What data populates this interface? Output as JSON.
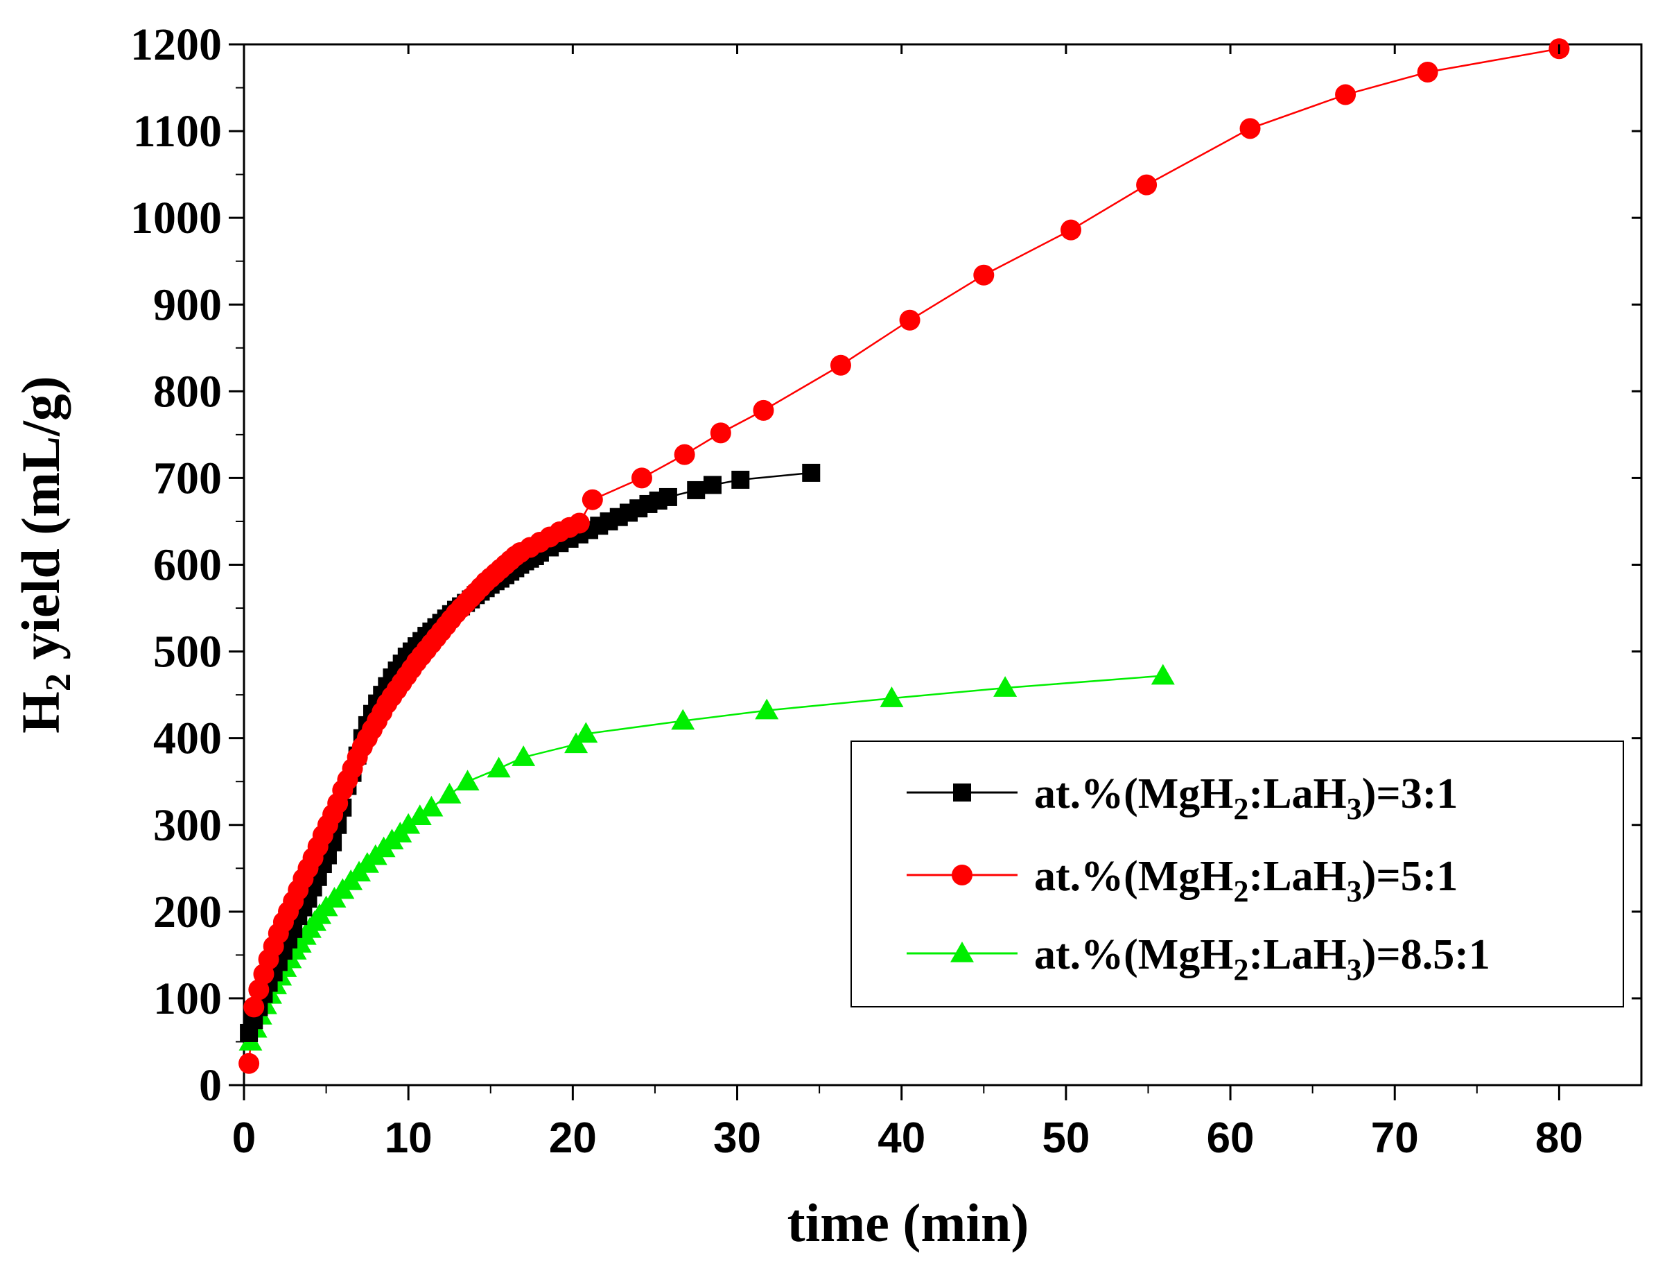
{
  "chart_data": {
    "type": "line",
    "title": "",
    "xlabel": "time (min)",
    "ylabel": {
      "base": "H",
      "sub": "2",
      "rest": " yield (mL/g)"
    },
    "xlim": [
      0,
      85
    ],
    "ylim": [
      0,
      1200
    ],
    "x_ticks": [
      0,
      10,
      20,
      30,
      40,
      50,
      60,
      70,
      80
    ],
    "y_ticks": [
      0,
      100,
      200,
      300,
      400,
      500,
      600,
      700,
      800,
      900,
      1000,
      1100,
      1200
    ],
    "legend_position": "center-right",
    "series": [
      {
        "name": "at.%(MgH2:LaH3)=3:1",
        "label_parts": [
          "at.%(MgH",
          "2",
          ":LaH",
          "3",
          ")=3:1"
        ],
        "color": "#000000",
        "marker": "square",
        "x": [
          0.3,
          0.6,
          0.9,
          1.2,
          1.5,
          1.8,
          2.1,
          2.4,
          2.7,
          3.0,
          3.3,
          3.6,
          3.9,
          4.2,
          4.5,
          4.8,
          5.1,
          5.4,
          5.7,
          6.0,
          6.3,
          6.6,
          6.9,
          7.2,
          7.5,
          7.8,
          8.1,
          8.4,
          8.7,
          9.0,
          9.3,
          9.6,
          9.9,
          10.2,
          10.5,
          10.8,
          11.1,
          11.4,
          11.7,
          12.0,
          12.3,
          12.6,
          12.9,
          13.2,
          13.5,
          13.8,
          14.1,
          14.4,
          14.7,
          15.0,
          15.3,
          15.6,
          15.9,
          16.2,
          16.5,
          16.8,
          17.1,
          17.4,
          17.7,
          18.0,
          18.6,
          19.2,
          19.8,
          20.4,
          21.0,
          21.6,
          22.2,
          22.8,
          23.4,
          24.0,
          24.6,
          25.2,
          25.8,
          27.5,
          28.5,
          30.2,
          34.5
        ],
        "y": [
          60,
          75,
          90,
          105,
          118,
          130,
          142,
          155,
          168,
          180,
          195,
          205,
          215,
          228,
          240,
          255,
          265,
          280,
          300,
          320,
          345,
          360,
          380,
          400,
          415,
          428,
          440,
          450,
          460,
          470,
          478,
          486,
          494,
          500,
          506,
          512,
          518,
          523,
          528,
          533,
          538,
          543,
          548,
          552,
          556,
          560,
          565,
          569,
          573,
          577,
          581,
          584,
          588,
          592,
          596,
          600,
          604,
          607,
          610,
          614,
          620,
          625,
          630,
          635,
          640,
          645,
          650,
          655,
          660,
          665,
          670,
          674,
          678,
          686,
          692,
          698,
          706
        ]
      },
      {
        "name": "at.%(MgH2:LaH3)=5:1",
        "label_parts": [
          "at.%(MgH",
          "2",
          ":LaH",
          "3",
          ")=5:1"
        ],
        "color": "#ff0000",
        "marker": "circle",
        "x": [
          0.3,
          0.6,
          0.9,
          1.2,
          1.5,
          1.8,
          2.1,
          2.4,
          2.7,
          3.0,
          3.3,
          3.6,
          3.9,
          4.2,
          4.5,
          4.8,
          5.1,
          5.4,
          5.7,
          6.0,
          6.3,
          6.6,
          6.9,
          7.2,
          7.5,
          7.8,
          8.1,
          8.4,
          8.7,
          9.0,
          9.3,
          9.6,
          9.9,
          10.2,
          10.5,
          10.8,
          11.1,
          11.4,
          11.7,
          12.0,
          12.3,
          12.6,
          12.9,
          13.2,
          13.5,
          13.8,
          14.1,
          14.4,
          14.7,
          15.0,
          15.3,
          15.6,
          15.9,
          16.2,
          16.5,
          16.8,
          17.4,
          18.0,
          18.6,
          19.2,
          19.8,
          20.4,
          21.2,
          24.2,
          26.8,
          29.0,
          31.6,
          36.3,
          40.5,
          45.0,
          50.3,
          54.9,
          61.2,
          67.0,
          72.0,
          80.0
        ],
        "y": [
          25,
          90,
          110,
          128,
          145,
          160,
          175,
          188,
          200,
          212,
          225,
          238,
          250,
          262,
          275,
          288,
          300,
          312,
          325,
          340,
          352,
          365,
          378,
          390,
          400,
          410,
          420,
          430,
          440,
          448,
          456,
          464,
          472,
          480,
          488,
          495,
          502,
          509,
          516,
          523,
          530,
          537,
          544,
          550,
          556,
          562,
          568,
          574,
          580,
          585,
          590,
          595,
          600,
          605,
          610,
          614,
          620,
          626,
          632,
          638,
          643,
          648,
          675,
          700,
          727,
          752,
          778,
          830,
          882,
          934,
          986,
          1038,
          1103,
          1142,
          1168,
          1195
        ]
      },
      {
        "name": "at.%(MgH2:LaH3)=8.5:1",
        "label_parts": [
          "at.%(MgH",
          "2",
          ":LaH",
          "3",
          ")=8.5:1"
        ],
        "color": "#00ee00",
        "marker": "triangle",
        "x": [
          0.4,
          0.7,
          1.0,
          1.3,
          1.6,
          1.9,
          2.2,
          2.5,
          2.8,
          3.1,
          3.4,
          3.7,
          4.0,
          4.3,
          4.6,
          5.0,
          5.5,
          6.0,
          6.5,
          7.0,
          7.5,
          8.0,
          8.5,
          9.0,
          9.5,
          10.0,
          10.7,
          11.4,
          12.5,
          13.6,
          15.5,
          17.0,
          20.2,
          20.8,
          26.7,
          31.8,
          39.4,
          46.3,
          55.9
        ],
        "y": [
          50,
          65,
          80,
          92,
          104,
          115,
          125,
          135,
          145,
          155,
          163,
          172,
          180,
          188,
          196,
          205,
          215,
          225,
          235,
          245,
          255,
          264,
          273,
          282,
          290,
          300,
          310,
          320,
          335,
          350,
          365,
          378,
          393,
          405,
          420,
          432,
          446,
          458,
          472
        ]
      }
    ]
  }
}
